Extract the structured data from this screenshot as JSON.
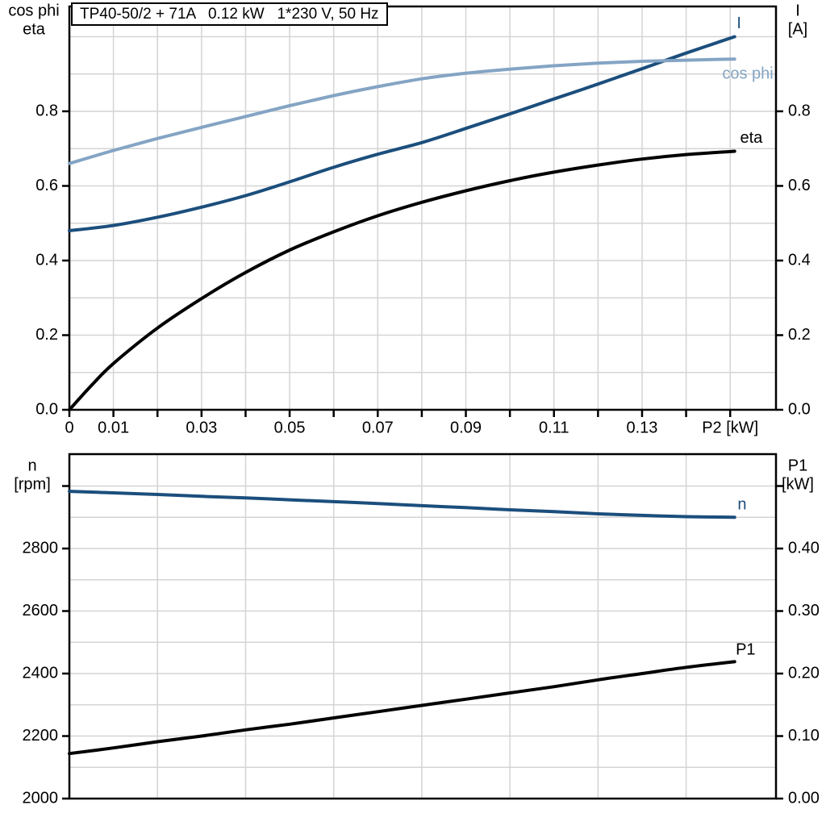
{
  "title_box": {
    "text": "TP40-50/2 + 71A   0.12 kW   1*230 V, 50 Hz"
  },
  "colors": {
    "dark_blue": "#1b4e7c",
    "light_blue": "#84a4c4",
    "black": "#000000",
    "grid": "#d4d4d4",
    "frame": "#000000"
  },
  "chart_data": [
    {
      "type": "line",
      "title": "TP40-50/2 + 71A   0.12 kW   1*230 V, 50 Hz",
      "xlabel": "P2 [kW]",
      "legend_position": "inline-labels",
      "grid": true,
      "axes": {
        "x": {
          "lim": [
            0,
            0.1604
          ],
          "ticks": [
            [
              0,
              "0"
            ],
            [
              0.01,
              "0.01"
            ],
            [
              0.02,
              null
            ],
            [
              0.03,
              "0.03"
            ],
            [
              0.04,
              null
            ],
            [
              0.05,
              "0.05"
            ],
            [
              0.06,
              null
            ],
            [
              0.07,
              "0.07"
            ],
            [
              0.08,
              null
            ],
            [
              0.09,
              "0.09"
            ],
            [
              0.1,
              null
            ],
            [
              0.11,
              "0.11"
            ],
            [
              0.12,
              null
            ],
            [
              0.13,
              "0.13"
            ],
            [
              0.14,
              null
            ],
            [
              0.15,
              "P2 [kW]"
            ]
          ],
          "grid": [
            0.01,
            0.02,
            0.03,
            0.04,
            0.05,
            0.06,
            0.07,
            0.08,
            0.09,
            0.1,
            0.11,
            0.12,
            0.13,
            0.14,
            0.15
          ]
        },
        "left": {
          "title_lines": [
            "cos phi",
            "eta"
          ],
          "lim": [
            0,
            1.081
          ],
          "ticks": [
            [
              0.0,
              "0.0"
            ],
            [
              0.2,
              "0.2"
            ],
            [
              0.4,
              "0.4"
            ],
            [
              0.6,
              "0.6"
            ],
            [
              0.8,
              "0.8"
            ]
          ],
          "grid": [
            0.1,
            0.2,
            0.3,
            0.4,
            0.5,
            0.6,
            0.7,
            0.8,
            0.9,
            1.0
          ]
        },
        "right": {
          "title_lines": [
            "I",
            "[A]"
          ],
          "lim": [
            0,
            1.081
          ],
          "ticks": [
            [
              0.0,
              "0.0"
            ],
            [
              0.2,
              "0.2"
            ],
            [
              0.4,
              "0.4"
            ],
            [
              0.6,
              "0.6"
            ],
            [
              0.8,
              "0.8"
            ]
          ]
        }
      },
      "series": [
        {
          "name": "I",
          "label": "I",
          "unit": "A",
          "axis": "right",
          "color": "dark_blue",
          "label_at": [
            0.152,
            1.034
          ],
          "points": [
            [
              0,
              0.48
            ],
            [
              0.01,
              0.494
            ],
            [
              0.02,
              0.516
            ],
            [
              0.03,
              0.543
            ],
            [
              0.04,
              0.574
            ],
            [
              0.05,
              0.611
            ],
            [
              0.06,
              0.65
            ],
            [
              0.07,
              0.685
            ],
            [
              0.08,
              0.716
            ],
            [
              0.09,
              0.754
            ],
            [
              0.1,
              0.793
            ],
            [
              0.11,
              0.833
            ],
            [
              0.12,
              0.873
            ],
            [
              0.13,
              0.914
            ],
            [
              0.14,
              0.956
            ],
            [
              0.151,
              1.0
            ]
          ]
        },
        {
          "name": "cos phi",
          "label": "cos phi",
          "unit": "",
          "axis": "left",
          "color": "light_blue",
          "label_at": [
            0.154,
            0.899
          ],
          "points": [
            [
              0,
              0.66
            ],
            [
              0.01,
              0.695
            ],
            [
              0.02,
              0.727
            ],
            [
              0.03,
              0.757
            ],
            [
              0.04,
              0.786
            ],
            [
              0.05,
              0.815
            ],
            [
              0.06,
              0.842
            ],
            [
              0.07,
              0.866
            ],
            [
              0.08,
              0.887
            ],
            [
              0.09,
              0.902
            ],
            [
              0.1,
              0.913
            ],
            [
              0.11,
              0.922
            ],
            [
              0.12,
              0.929
            ],
            [
              0.13,
              0.934
            ],
            [
              0.14,
              0.937
            ],
            [
              0.151,
              0.94
            ]
          ]
        },
        {
          "name": "eta",
          "label": "eta",
          "unit": "",
          "axis": "left",
          "color": "black",
          "label_at": [
            0.1548,
            0.727
          ],
          "points": [
            [
              0,
              0.0
            ],
            [
              0.005,
              0.065
            ],
            [
              0.01,
              0.124
            ],
            [
              0.02,
              0.219
            ],
            [
              0.03,
              0.298
            ],
            [
              0.04,
              0.368
            ],
            [
              0.05,
              0.428
            ],
            [
              0.06,
              0.477
            ],
            [
              0.07,
              0.52
            ],
            [
              0.08,
              0.556
            ],
            [
              0.09,
              0.587
            ],
            [
              0.1,
              0.614
            ],
            [
              0.11,
              0.637
            ],
            [
              0.12,
              0.656
            ],
            [
              0.13,
              0.672
            ],
            [
              0.14,
              0.684
            ],
            [
              0.151,
              0.693
            ]
          ]
        }
      ]
    },
    {
      "type": "line",
      "title": "",
      "xlabel": "",
      "legend_position": "inline-labels",
      "grid": true,
      "axes": {
        "x": {
          "lim": [
            0,
            0.1604
          ],
          "ticks": [],
          "grid": [
            0.02,
            0.04,
            0.06,
            0.08,
            0.1,
            0.12,
            0.14
          ]
        },
        "left": {
          "title_lines": [
            "n",
            "[rpm]"
          ],
          "lim": [
            2000,
            3102
          ],
          "ticks": [
            [
              2000,
              "2000"
            ],
            [
              2200,
              "2200"
            ],
            [
              2400,
              "2400"
            ],
            [
              2600,
              "2600"
            ],
            [
              2800,
              "2800"
            ],
            [
              3000,
              null
            ]
          ],
          "grid": [
            2100,
            2200,
            2300,
            2400,
            2500,
            2600,
            2700,
            2800,
            2900,
            3000
          ]
        },
        "right": {
          "title_lines": [
            "P1",
            "[kW]"
          ],
          "lim": [
            0,
            0.551
          ],
          "ticks": [
            [
              0.0,
              "0.00"
            ],
            [
              0.1,
              "0.10"
            ],
            [
              0.2,
              "0.20"
            ],
            [
              0.3,
              "0.30"
            ],
            [
              0.4,
              "0.40"
            ],
            [
              0.5,
              null
            ]
          ]
        }
      },
      "series": [
        {
          "name": "n",
          "label": "n",
          "unit": "rpm",
          "axis": "left",
          "color": "dark_blue",
          "label_at": [
            0.1527,
            2939
          ],
          "points": [
            [
              0,
              2983
            ],
            [
              0.01,
              2978
            ],
            [
              0.02,
              2973
            ],
            [
              0.03,
              2967
            ],
            [
              0.04,
              2962
            ],
            [
              0.05,
              2956
            ],
            [
              0.06,
              2950
            ],
            [
              0.07,
              2944
            ],
            [
              0.08,
              2937
            ],
            [
              0.09,
              2931
            ],
            [
              0.1,
              2924
            ],
            [
              0.11,
              2918
            ],
            [
              0.12,
              2911
            ],
            [
              0.13,
              2906
            ],
            [
              0.14,
              2902
            ],
            [
              0.151,
              2900
            ]
          ]
        },
        {
          "name": "P1",
          "label": "P1",
          "unit": "kW",
          "axis": "right",
          "color": "black",
          "label_at": [
            0.1535,
            0.237
          ],
          "points": [
            [
              0,
              0.072
            ],
            [
              0.01,
              0.081
            ],
            [
              0.02,
              0.091
            ],
            [
              0.03,
              0.1
            ],
            [
              0.04,
              0.11
            ],
            [
              0.05,
              0.119
            ],
            [
              0.06,
              0.129
            ],
            [
              0.07,
              0.139
            ],
            [
              0.08,
              0.149
            ],
            [
              0.09,
              0.159
            ],
            [
              0.1,
              0.169
            ],
            [
              0.11,
              0.179
            ],
            [
              0.12,
              0.19
            ],
            [
              0.13,
              0.2
            ],
            [
              0.14,
              0.21
            ],
            [
              0.151,
              0.219
            ]
          ]
        }
      ]
    }
  ]
}
